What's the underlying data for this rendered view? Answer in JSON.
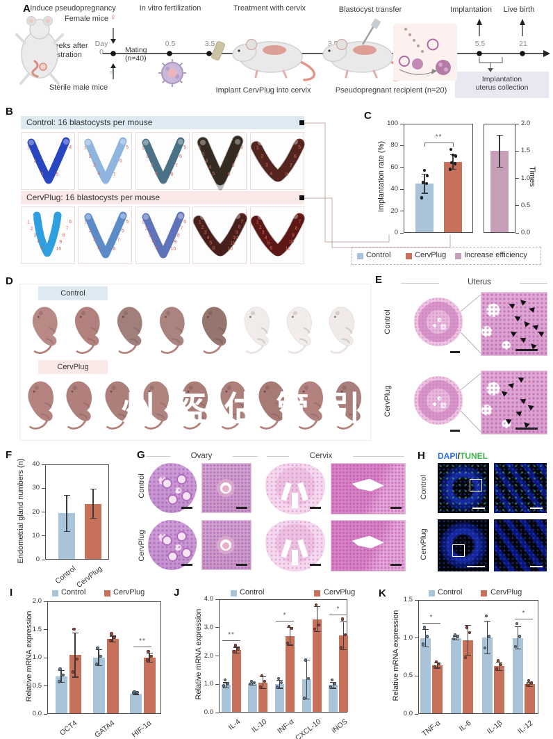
{
  "colors": {
    "control": "#a9c3d8",
    "cervplug": "#c7705a",
    "increase": "#c79fb9",
    "control_pt": "#69809a",
    "cervplug_pt": "#9b4636",
    "black_pt": "#1c1c1c",
    "control_header_bg": "#ddeaf2",
    "cervplug_header_bg": "#fbe9e7",
    "collection_box_bg": "#e9e7f2",
    "site_number": "#cc6a5e",
    "dapi": "#2b6be8",
    "tunel": "#3cb54a"
  },
  "panelA": {
    "label": "A",
    "steps": [
      "Induce pseudopregnancy",
      "In vitro fertilization",
      "Treatment with cervix",
      "Blastocyst transfer",
      "Implantation",
      "Live birth"
    ],
    "female_label": "Female mice",
    "female_symbol": "♀",
    "castration_label": "2 weeks after\ncastration",
    "male_label": "Sterile male mice",
    "male_symbol": "♂",
    "day_zero": "Day 0",
    "mating_label": "Mating\n(n=40)",
    "timepoints": [
      "0.5",
      "3.5",
      "3.5",
      "5.5",
      "21"
    ],
    "implant_caption": "Implant CervPlug into cervix",
    "recipient_caption": "Pseudopregnant recipient (n=20)",
    "collection_caption": "Implantation\nuterus collection"
  },
  "panelB": {
    "label": "B",
    "rows": [
      {
        "header": "Control: 16 blastocysts per mouse",
        "header_bg": "#ddeaf2",
        "uterus_colors": [
          "#2746c0",
          "#8fb4de",
          "#4b7186",
          "#473a2b",
          "#703028"
        ],
        "site_counts": [
          5,
          7,
          8,
          9,
          8
        ],
        "variant": [
          0,
          0,
          0,
          0,
          2
        ]
      },
      {
        "header": "CervPlug: 16 blastocysts per mouse",
        "header_bg": "#fbe9e7",
        "uterus_colors": [
          "#2f9fe0",
          "#5b8cc8",
          "#5e73b8",
          "#622a24",
          "#7d1f1d"
        ],
        "site_counts": [
          10,
          8,
          10,
          12,
          11
        ],
        "variant": [
          1,
          0,
          0,
          2,
          2
        ]
      }
    ]
  },
  "panelD": {
    "label": "D",
    "rows": [
      {
        "header": "Control",
        "header_bg": "#ddeaf2",
        "pups": [
          "#b88985",
          "#b2817d",
          "#a37f7c",
          "#ab8480",
          "#97756f",
          "#f1ebe9",
          "#f2ecea",
          "#f0eae8"
        ]
      },
      {
        "header": "CervPlug",
        "header_bg": "#fbe9e7",
        "pups": [
          "#b5837f",
          "#b1807c",
          "#ad7f7b",
          "#b0837f",
          "#aa7d79",
          "#ad807c",
          "#a87a76",
          "#b3827e",
          "#aa7e7a"
        ]
      }
    ],
    "watermark": "州盔估管引"
  },
  "panelE": {
    "label": "E",
    "title": "Uterus",
    "rows": [
      "Control",
      "CervPlug"
    ]
  },
  "panelG": {
    "label": "G",
    "columns": [
      "Ovary",
      "Cervix"
    ],
    "rows": [
      "Control",
      "CervPlug"
    ]
  },
  "panelH": {
    "label": "H",
    "title_dapi": "DAPI",
    "title_slash": "/",
    "title_tunel": "TUNEL",
    "rows": [
      "Control",
      "CervPlug"
    ]
  },
  "chart_data": [
    {
      "id": "C",
      "type": "bar",
      "label": "C",
      "ylabel": "Implantation rate (%)",
      "ylim": [
        0,
        100
      ],
      "yticks": [
        "0",
        "20",
        "40",
        "60",
        "80",
        "100"
      ],
      "categories": [
        "Control",
        "CervPlug"
      ],
      "values": [
        45,
        65
      ],
      "errors": [
        9,
        7
      ],
      "points": [
        [
          31,
          44,
          45,
          51,
          56
        ],
        [
          57,
          62,
          63,
          69,
          70,
          75
        ]
      ],
      "sig": "**",
      "secondary": {
        "label": "Increase efficiency",
        "value": 1.5,
        "error": 0.3,
        "axis_label": "Times",
        "ylim": [
          0,
          2
        ],
        "yticks": [
          "0.0",
          "0.5",
          "1.0",
          "1.5",
          "2.0"
        ]
      },
      "legend": [
        "Control",
        "CervPlug",
        "Increase efficiency"
      ]
    },
    {
      "id": "F",
      "type": "bar",
      "label": "F",
      "ylabel": "Endometrial gland numbers (n)",
      "ylim": [
        0,
        40
      ],
      "yticks": [
        "0",
        "10",
        "20",
        "30",
        "40"
      ],
      "categories": [
        "Control",
        "CervPlug"
      ],
      "values": [
        19.5,
        23.5
      ],
      "errors": [
        7.7,
        6.3
      ]
    },
    {
      "id": "I",
      "type": "bar",
      "label": "I",
      "ylabel": "Relative mRNA expression",
      "ylim": [
        0,
        2
      ],
      "yticks": [
        "0.0",
        "0.5",
        "1.0",
        "1.5",
        "2.0"
      ],
      "categories": [
        "OCT4",
        "GATA4",
        "HIF-1α"
      ],
      "series": [
        {
          "name": "Control",
          "values": [
            0.67,
            1.0,
            0.36
          ],
          "errors": [
            0.11,
            0.15,
            0.02
          ],
          "points": [
            [
              0.55,
              0.67,
              0.77
            ],
            [
              0.86,
              1.0,
              1.15
            ],
            [
              0.35,
              0.36,
              0.37
            ]
          ]
        },
        {
          "name": "CervPlug",
          "values": [
            1.05,
            1.33,
            1.0
          ],
          "errors": [
            0.4,
            0.06,
            0.09
          ],
          "points": [
            [
              0.72,
              0.95,
              1.48
            ],
            [
              1.28,
              1.33,
              1.4
            ],
            [
              0.93,
              1.0,
              1.09
            ]
          ]
        }
      ],
      "sig": [
        {
          "category": "HIF-1α",
          "label": "**"
        }
      ],
      "legend": [
        "Control",
        "CervPlug"
      ]
    },
    {
      "id": "J",
      "type": "bar",
      "label": "J",
      "ylabel": "Relative mRNA expression",
      "ylim": [
        0,
        4
      ],
      "yticks": [
        "0.0",
        "1.0",
        "2.0",
        "3.0",
        "4.0"
      ],
      "categories": [
        "IL-4",
        "IL-10",
        "INF-α",
        "CXCL-10",
        "iNOS"
      ],
      "series": [
        {
          "name": "Control",
          "values": [
            0.97,
            1.0,
            1.0,
            1.17,
            0.97
          ],
          "errors": [
            0.1,
            0.05,
            0.15,
            0.7,
            0.12
          ],
          "points": [
            [
              0.9,
              0.97,
              1.1
            ],
            [
              0.95,
              1.0,
              1.05
            ],
            [
              0.85,
              1.0,
              1.15
            ],
            [
              0.45,
              1.15,
              1.8
            ],
            [
              0.85,
              0.97,
              1.1
            ]
          ]
        },
        {
          "name": "CervPlug",
          "values": [
            2.2,
            1.05,
            2.7,
            3.3,
            2.72
          ],
          "errors": [
            0.12,
            0.22,
            0.33,
            0.45,
            0.5
          ],
          "points": [
            [
              2.1,
              2.2,
              2.32
            ],
            [
              0.85,
              1.05,
              1.25
            ],
            [
              2.4,
              2.92,
              3.0
            ],
            [
              2.9,
              3.05,
              3.75
            ],
            [
              2.25,
              2.7,
              3.25
            ]
          ]
        }
      ],
      "sig": [
        {
          "category": "IL-4",
          "label": "**"
        },
        {
          "category": "INF-α",
          "label": "*"
        },
        {
          "category": "iNOS",
          "label": "*"
        }
      ],
      "legend": [
        "Control",
        "CervPlug"
      ]
    },
    {
      "id": "K",
      "type": "bar",
      "label": "K",
      "ylabel": "Relative mRNA expression",
      "ylim": [
        0,
        1.5
      ],
      "yticks": [
        "0.0",
        "0.5",
        "1.0",
        "1.5"
      ],
      "categories": [
        "TNF-α",
        "IL-6",
        "IL-1β",
        "IL-12"
      ],
      "series": [
        {
          "name": "Control",
          "values": [
            1.0,
            1.0,
            1.01,
            1.0
          ],
          "errors": [
            0.12,
            0.03,
            0.22,
            0.15
          ],
          "points": [
            [
              0.9,
              1.0,
              1.12
            ],
            [
              0.97,
              1.0,
              1.02
            ],
            [
              0.85,
              1.0,
              1.27
            ],
            [
              0.87,
              1.0,
              1.17
            ]
          ]
        },
        {
          "name": "CervPlug",
          "values": [
            0.64,
            0.97,
            0.63,
            0.39
          ],
          "errors": [
            0.04,
            0.2,
            0.06,
            0.03
          ],
          "points": [
            [
              0.6,
              0.64,
              0.67
            ],
            [
              0.72,
              1.05,
              1.12
            ],
            [
              0.57,
              0.63,
              0.68
            ],
            [
              0.36,
              0.39,
              0.42
            ]
          ]
        }
      ],
      "sig": [
        {
          "category": "TNF-α",
          "label": "*"
        },
        {
          "category": "IL-12",
          "label": "*"
        }
      ],
      "legend": [
        "Control",
        "CervPlug"
      ]
    }
  ]
}
